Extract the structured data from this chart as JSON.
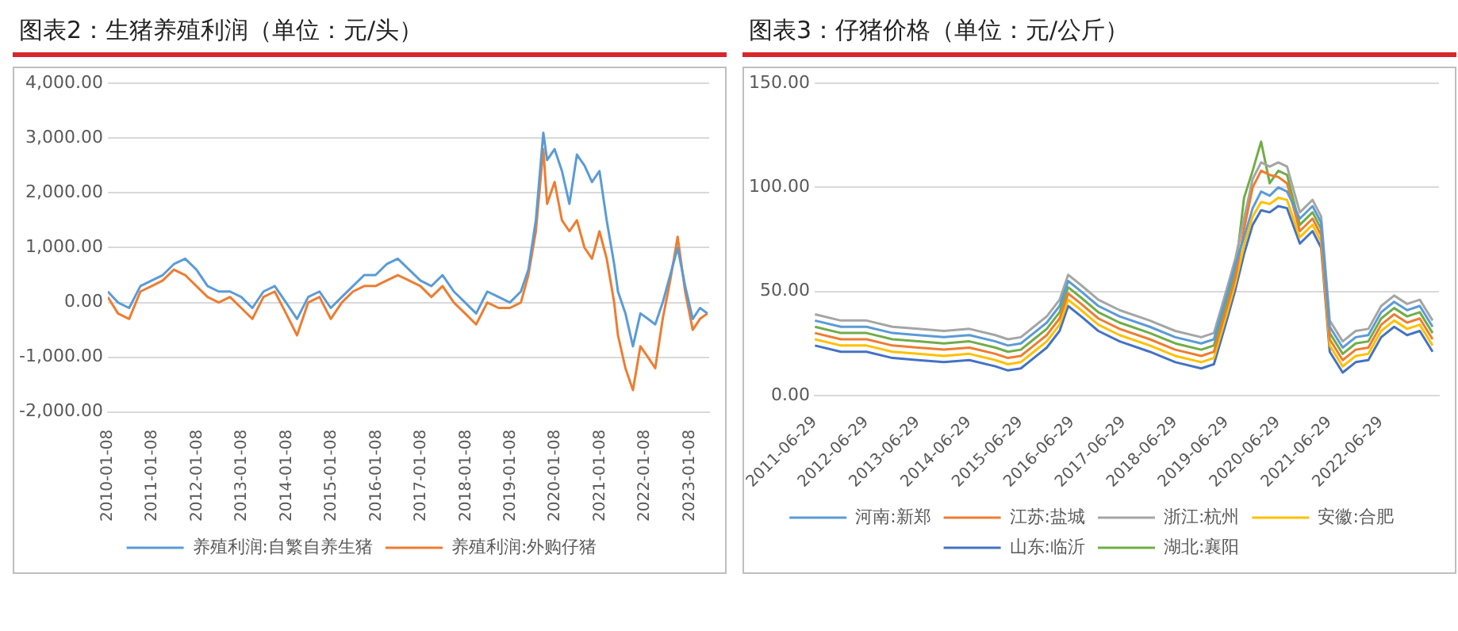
{
  "chart_data": [
    {
      "type": "line",
      "title": "图表2：生猪养殖利润（单位：元/头）",
      "x": [
        "2010-01-08",
        "2010-04",
        "2010-07",
        "2010-10",
        "2011-01",
        "2011-04",
        "2011-07",
        "2011-10",
        "2012-01",
        "2012-04",
        "2012-07",
        "2012-10",
        "2013-01",
        "2013-04",
        "2013-07",
        "2013-10",
        "2014-01",
        "2014-04",
        "2014-07",
        "2014-10",
        "2015-01",
        "2015-04",
        "2015-07",
        "2015-10",
        "2016-01",
        "2016-04",
        "2016-07",
        "2016-10",
        "2017-01",
        "2017-04",
        "2017-07",
        "2017-10",
        "2018-01",
        "2018-04",
        "2018-07",
        "2018-10",
        "2019-01",
        "2019-04",
        "2019-06",
        "2019-08",
        "2019-10",
        "2019-11",
        "2020-01",
        "2020-03",
        "2020-05",
        "2020-07",
        "2020-09",
        "2020-11",
        "2021-01",
        "2021-03",
        "2021-05",
        "2021-06",
        "2021-08",
        "2021-10",
        "2021-12",
        "2022-02",
        "2022-04",
        "2022-06",
        "2022-08",
        "2022-10",
        "2022-12",
        "2023-02",
        "2023-04",
        "2023-06"
      ],
      "series": [
        {
          "name": "养殖利润:自繁自养生猪",
          "color": "#5b9bd5",
          "values": [
            200,
            0,
            -100,
            300,
            400,
            500,
            700,
            800,
            600,
            300,
            200,
            200,
            100,
            -100,
            200,
            300,
            0,
            -300,
            100,
            200,
            -100,
            100,
            300,
            500,
            500,
            700,
            800,
            600,
            400,
            300,
            500,
            200,
            0,
            -200,
            200,
            100,
            0,
            200,
            600,
            1500,
            3100,
            2600,
            2800,
            2400,
            1800,
            2700,
            2500,
            2200,
            2400,
            1500,
            700,
            200,
            -200,
            -800,
            -200,
            -300,
            -400,
            0,
            500,
            1000,
            300,
            -300,
            -100,
            -200
          ]
        },
        {
          "name": "养殖利润:外购仔猪",
          "color": "#ed7d31",
          "values": [
            100,
            -200,
            -300,
            200,
            300,
            400,
            600,
            500,
            300,
            100,
            0,
            100,
            -100,
            -300,
            100,
            200,
            -200,
            -600,
            0,
            100,
            -300,
            0,
            200,
            300,
            300,
            400,
            500,
            400,
            300,
            100,
            300,
            0,
            -200,
            -400,
            0,
            -100,
            -100,
            0,
            500,
            1300,
            2800,
            1800,
            2200,
            1500,
            1300,
            1500,
            1000,
            800,
            1300,
            800,
            0,
            -600,
            -1200,
            -1600,
            -800,
            -1000,
            -1200,
            -300,
            400,
            1200,
            200,
            -500,
            -300,
            -200
          ]
        }
      ],
      "xlim": [
        "2010-01-08",
        "2023-06-15"
      ],
      "xticks": [
        "2010-01-08",
        "2011-01-08",
        "2012-01-08",
        "2013-01-08",
        "2014-01-08",
        "2015-01-08",
        "2016-01-08",
        "2017-01-08",
        "2018-01-08",
        "2019-01-08",
        "2020-01-08",
        "2021-01-08",
        "2022-01-08",
        "2023-01-08"
      ],
      "ylim": [
        -2000,
        4000
      ],
      "yticks": [
        {
          "value": -2000,
          "label": "-2,000.00"
        },
        {
          "value": -1000,
          "label": "-1,000.00"
        },
        {
          "value": 0,
          "label": "0.00"
        },
        {
          "value": 1000,
          "label": "1,000.00"
        },
        {
          "value": 2000,
          "label": "2,000.00"
        },
        {
          "value": 3000,
          "label": "3,000.00"
        },
        {
          "value": 4000,
          "label": "4,000.00"
        }
      ],
      "grid": "y",
      "legend": "bottom",
      "marker": "none"
    },
    {
      "type": "line",
      "title": "图表3：仔猪价格（单位：元/公斤）",
      "x": [
        "2011-07",
        "2012-01",
        "2012-07",
        "2013-01",
        "2013-07",
        "2014-01",
        "2014-07",
        "2015-01",
        "2015-04",
        "2015-07",
        "2015-10",
        "2016-01",
        "2016-04",
        "2016-06",
        "2016-09",
        "2017-01",
        "2017-06",
        "2018-01",
        "2018-07",
        "2019-01",
        "2019-04",
        "2019-07",
        "2019-09",
        "2019-11",
        "2020-01",
        "2020-03",
        "2020-05",
        "2020-07",
        "2020-09",
        "2020-12",
        "2021-03",
        "2021-05",
        "2021-07",
        "2021-10",
        "2022-01",
        "2022-04",
        "2022-07",
        "2022-10",
        "2023-01",
        "2023-04",
        "2023-07"
      ],
      "series": [
        {
          "name": "河南:新郑",
          "color": "#5b9bd5",
          "values": [
            36,
            33,
            33,
            30,
            29,
            28,
            29,
            26,
            24,
            25,
            30,
            35,
            43,
            55,
            50,
            43,
            38,
            33,
            28,
            25,
            27,
            48,
            63,
            76,
            90,
            98,
            96,
            100,
            98,
            85,
            91,
            83,
            33,
            23,
            28,
            29,
            40,
            45,
            41,
            43,
            33
          ]
        },
        {
          "name": "江苏:盐城",
          "color": "#ed7d31",
          "values": [
            30,
            27,
            27,
            24,
            23,
            22,
            23,
            20,
            18,
            19,
            24,
            29,
            37,
            49,
            44,
            37,
            32,
            27,
            22,
            19,
            21,
            42,
            57,
            80,
            100,
            108,
            106,
            105,
            102,
            79,
            85,
            77,
            27,
            17,
            22,
            23,
            34,
            39,
            35,
            37,
            27
          ]
        },
        {
          "name": "浙江:杭州",
          "color": "#a5a5a5",
          "values": [
            39,
            36,
            36,
            33,
            32,
            31,
            32,
            29,
            27,
            28,
            33,
            38,
            46,
            58,
            53,
            46,
            41,
            36,
            31,
            28,
            30,
            51,
            66,
            85,
            104,
            112,
            110,
            112,
            110,
            88,
            94,
            86,
            36,
            26,
            31,
            32,
            43,
            48,
            44,
            46,
            36
          ]
        },
        {
          "name": "安徽:合肥",
          "color": "#ffc000",
          "values": [
            27,
            24,
            24,
            21,
            20,
            19,
            20,
            17,
            15,
            16,
            21,
            26,
            34,
            46,
            41,
            34,
            29,
            24,
            19,
            16,
            18,
            39,
            54,
            72,
            86,
            93,
            92,
            95,
            94,
            76,
            82,
            74,
            24,
            14,
            19,
            20,
            31,
            36,
            32,
            34,
            24
          ]
        },
        {
          "name": "山东:临沂",
          "color": "#4472c4",
          "values": [
            24,
            21,
            21,
            18,
            17,
            16,
            17,
            14,
            12,
            13,
            18,
            23,
            31,
            43,
            38,
            31,
            26,
            21,
            16,
            13,
            15,
            36,
            51,
            68,
            82,
            89,
            88,
            91,
            90,
            73,
            79,
            71,
            21,
            11,
            16,
            17,
            28,
            33,
            29,
            31,
            21
          ]
        },
        {
          "name": "湖北:襄阳",
          "color": "#70ad47",
          "values": [
            33,
            30,
            30,
            27,
            26,
            25,
            26,
            23,
            21,
            22,
            27,
            32,
            40,
            52,
            47,
            40,
            35,
            30,
            25,
            22,
            24,
            45,
            60,
            95,
            108,
            122,
            102,
            108,
            106,
            82,
            88,
            80,
            30,
            20,
            25,
            26,
            37,
            42,
            38,
            40,
            30
          ]
        }
      ],
      "xlim": [
        "2011-06-29",
        "2023-08-15"
      ],
      "xticks": [
        "2011-06-29",
        "2012-06-29",
        "2013-06-29",
        "2014-06-29",
        "2015-06-29",
        "2016-06-29",
        "2017-06-29",
        "2018-06-29",
        "2019-06-29",
        "2020-06-29",
        "2021-06-29",
        "2022-06-29"
      ],
      "ylim": [
        0,
        150
      ],
      "yticks": [
        {
          "value": 0,
          "label": "0.00"
        },
        {
          "value": 50,
          "label": "50.00"
        },
        {
          "value": 100,
          "label": "100.00"
        },
        {
          "value": 150,
          "label": "150.00"
        }
      ],
      "grid": "y",
      "legend": "bottom",
      "marker": "none"
    }
  ]
}
